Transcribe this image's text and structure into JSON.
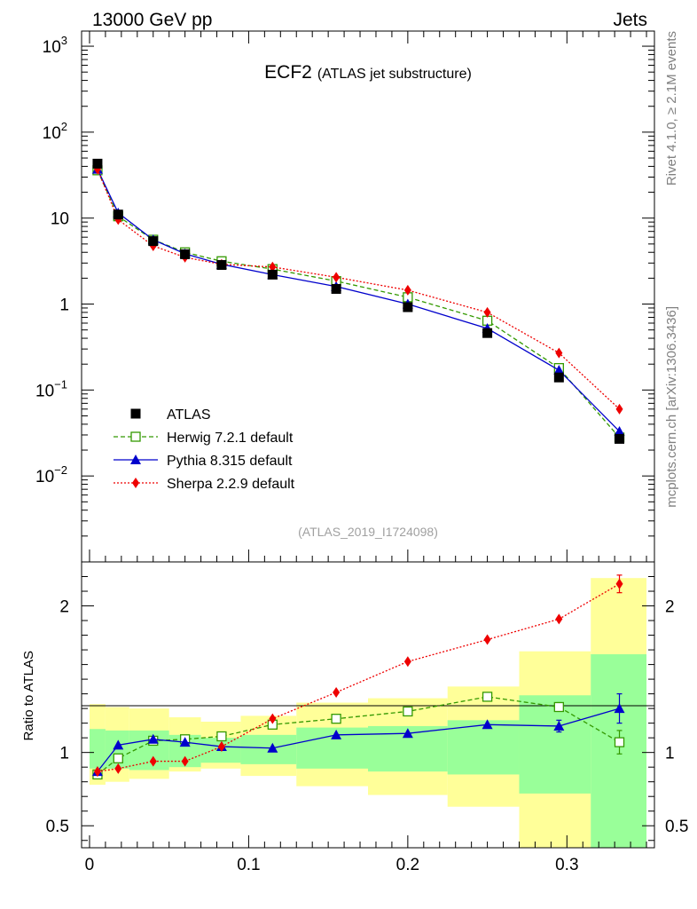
{
  "header": {
    "left": "13000 GeV pp",
    "right": "Jets"
  },
  "side_labels": {
    "rivet": "Rivet 4.1.0, ≥ 2.1M events",
    "mcplots": "mcplots.cern.ch [arXiv:1306.3436]"
  },
  "chart_data": {
    "type": "line",
    "title": "ECF2",
    "subtitle": "(ATLAS jet substructure)",
    "analysis_id": "(ATLAS_2019_I1724098)",
    "xlabel": "",
    "ylabel_top": "",
    "ylabel_ratio": "Ratio to ATLAS",
    "xlim": [
      -0.005,
      0.355
    ],
    "top_ylim": [
      0.001,
      1500
    ],
    "top_yscale": "log",
    "top_yticks": [
      {
        "value": 0.01,
        "base": "10",
        "exp": "−2"
      },
      {
        "value": 0.1,
        "base": "10",
        "exp": "−1"
      },
      {
        "value": 1,
        "base": "1",
        "exp": ""
      },
      {
        "value": 10,
        "base": "10",
        "exp": ""
      },
      {
        "value": 100,
        "base": "10",
        "exp": "2"
      },
      {
        "value": 1000,
        "base": "10",
        "exp": "3"
      }
    ],
    "ratio_ylim": [
      0.35,
      2.3
    ],
    "ratio_yticks": [
      {
        "value": 0.5,
        "label": "0.5"
      },
      {
        "value": 1,
        "label": "1"
      },
      {
        "value": 2,
        "label": "2"
      }
    ],
    "xticks": [
      {
        "value": 0,
        "label": "0"
      },
      {
        "value": 0.1,
        "label": "0.1"
      },
      {
        "value": 0.2,
        "label": "0.2"
      },
      {
        "value": 0.3,
        "label": "0.3"
      }
    ],
    "bin_edges": [
      0,
      0.01,
      0.025,
      0.05,
      0.07,
      0.095,
      0.13,
      0.175,
      0.225,
      0.27,
      0.315,
      0.35
    ],
    "x": [
      0.005,
      0.018,
      0.04,
      0.06,
      0.083,
      0.115,
      0.155,
      0.2,
      0.25,
      0.295,
      0.333
    ],
    "data": {
      "name": "ATLAS",
      "values": [
        43,
        11,
        5.4,
        3.8,
        2.85,
        2.2,
        1.5,
        0.92,
        0.46,
        0.14,
        0.027
      ]
    },
    "series": [
      {
        "name": "Herwig 7.2.1 default",
        "color": "#339900",
        "style": "dashed",
        "marker": "open-square",
        "values": [
          36,
          10.5,
          5.6,
          4.0,
          3.15,
          2.55,
          1.85,
          1.2,
          0.64,
          0.18,
          0.028
        ],
        "ratio": [
          0.85,
          0.96,
          1.08,
          1.09,
          1.11,
          1.19,
          1.23,
          1.28,
          1.38,
          1.31,
          1.07
        ],
        "ratio_err": [
          0,
          0,
          0,
          0,
          0,
          0,
          0,
          0,
          0,
          0.03,
          0.08
        ]
      },
      {
        "name": "Pythia 8.315 default",
        "color": "#0000cc",
        "style": "solid",
        "marker": "filled-triangle",
        "values": [
          37,
          11.5,
          5.6,
          3.85,
          2.9,
          2.2,
          1.6,
          1.0,
          0.52,
          0.17,
          0.033
        ],
        "ratio": [
          0.87,
          1.05,
          1.09,
          1.07,
          1.04,
          1.03,
          1.12,
          1.13,
          1.19,
          1.18,
          1.3
        ],
        "ratio_err": [
          0,
          0,
          0,
          0,
          0,
          0,
          0,
          0,
          0,
          0.04,
          0.1
        ]
      },
      {
        "name": "Sherpa 2.2.9 default",
        "color": "#ee0000",
        "style": "dotted",
        "marker": "filled-diamond",
        "values": [
          37,
          9.6,
          4.75,
          3.5,
          2.9,
          2.7,
          2.05,
          1.45,
          0.8,
          0.27,
          0.06
        ],
        "ratio": [
          0.87,
          0.89,
          0.94,
          0.94,
          1.04,
          1.23,
          1.41,
          1.62,
          1.77,
          1.91,
          2.15
        ],
        "ratio_err": [
          0,
          0,
          0,
          0,
          0,
          0,
          0,
          0,
          0,
          0,
          0.06
        ]
      }
    ],
    "ratio_band_green": [
      [
        0.89,
        1.16
      ],
      [
        0.89,
        1.15
      ],
      [
        0.88,
        1.15
      ],
      [
        0.9,
        1.12
      ],
      [
        0.93,
        1.1
      ],
      [
        0.92,
        1.12
      ],
      [
        0.89,
        1.17
      ],
      [
        0.87,
        1.18
      ],
      [
        0.85,
        1.22
      ],
      [
        0.72,
        1.39
      ],
      [
        0.33,
        1.67
      ]
    ],
    "ratio_band_yellow": [
      [
        0.78,
        1.33
      ],
      [
        0.8,
        1.31
      ],
      [
        0.82,
        1.3
      ],
      [
        0.87,
        1.24
      ],
      [
        0.89,
        1.21
      ],
      [
        0.84,
        1.25
      ],
      [
        0.77,
        1.34
      ],
      [
        0.71,
        1.37
      ],
      [
        0.63,
        1.45
      ],
      [
        0.33,
        1.69
      ],
      [
        0.33,
        2.19
      ]
    ],
    "legend_position": "lower-left"
  }
}
